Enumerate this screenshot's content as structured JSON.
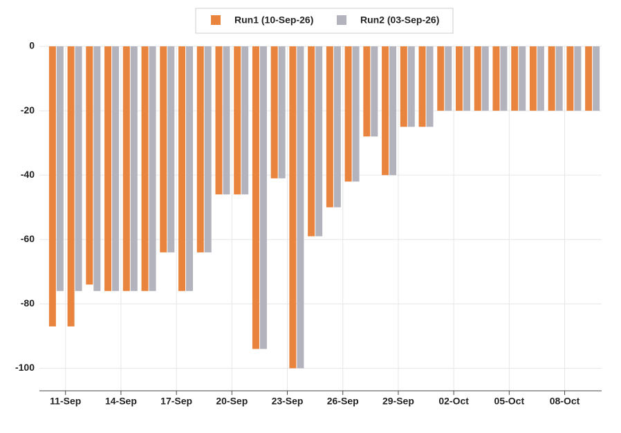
{
  "chart_data": {
    "type": "bar",
    "categories": [
      null,
      "11-Sep",
      null,
      null,
      "14-Sep",
      null,
      null,
      "17-Sep",
      null,
      null,
      "20-Sep",
      null,
      null,
      "23-Sep",
      null,
      null,
      "26-Sep",
      null,
      null,
      "29-Sep",
      null,
      null,
      "02-Oct",
      null,
      null,
      "05-Oct",
      null,
      null,
      "08-Oct",
      null
    ],
    "series": [
      {
        "name": "Run1 (10-Sep-26)",
        "color": "#e8843e",
        "values": [
          -87,
          -87,
          -74,
          -76,
          -76,
          -76,
          -64,
          -76,
          -64,
          -46,
          -46,
          -94,
          -41,
          -100,
          -59,
          -50,
          -42,
          -28,
          -40,
          -25,
          -25,
          -20,
          -20,
          -20,
          -20,
          -20,
          -20,
          -20,
          -20,
          -20
        ]
      },
      {
        "name": "Run2 (03-Sep-26)",
        "color": "#b3b3bd",
        "values": [
          -76,
          -76,
          -76,
          -76,
          -76,
          -76,
          -64,
          -76,
          -64,
          -46,
          -46,
          -94,
          -41,
          -100,
          -59,
          -50,
          -42,
          -28,
          -40,
          -25,
          -25,
          -20,
          -20,
          -20,
          -20,
          -20,
          -20,
          -20,
          -20,
          -20
        ]
      }
    ],
    "ylim": [
      -107,
      0
    ],
    "yticks": [
      0,
      -20,
      -40,
      -60,
      -80,
      -100
    ],
    "grid": true,
    "legend": "top"
  }
}
